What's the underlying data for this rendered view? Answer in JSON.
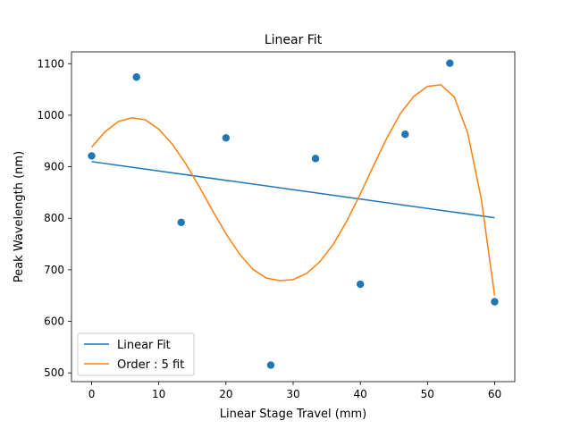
{
  "chart_data": {
    "type": "scatter",
    "title": "Linear Fit",
    "xlabel": "Linear Stage Travel (mm)",
    "ylabel": "Peak Wavelength (nm)",
    "xlim": [
      -3,
      63
    ],
    "ylim": [
      483,
      1123
    ],
    "xticks": [
      0,
      10,
      20,
      30,
      40,
      50,
      60
    ],
    "yticks": [
      500,
      600,
      700,
      800,
      900,
      1000,
      1100
    ],
    "grid": false,
    "legend_position": "lower-left",
    "points": {
      "color": "#1f77b4",
      "x": [
        0,
        6.67,
        13.33,
        20,
        26.67,
        33.33,
        40,
        46.67,
        53.33,
        60
      ],
      "y": [
        921,
        1074,
        792,
        956,
        515,
        916,
        672,
        963,
        1101,
        638
      ]
    },
    "series": [
      {
        "name": "Linear Fit",
        "color": "#1f77b4",
        "x": [
          0,
          60
        ],
        "y": [
          910,
          801
        ]
      },
      {
        "name": "Order : 5 fit",
        "color": "#ff7f0e",
        "x": [
          0,
          2,
          4,
          6,
          8,
          10,
          12,
          14,
          16,
          18,
          20,
          22,
          24,
          26,
          28,
          30,
          32,
          34,
          36,
          38,
          40,
          42,
          44,
          46,
          48,
          50,
          52,
          54,
          56,
          58,
          60
        ],
        "y": [
          938,
          968,
          988,
          995,
          991,
          973,
          944,
          906,
          862,
          815,
          770,
          731,
          701,
          684,
          679,
          681,
          693,
          716,
          750,
          795,
          847,
          903,
          957,
          1004,
          1037,
          1056,
          1059,
          1035,
          965,
          838,
          650
        ]
      }
    ]
  }
}
